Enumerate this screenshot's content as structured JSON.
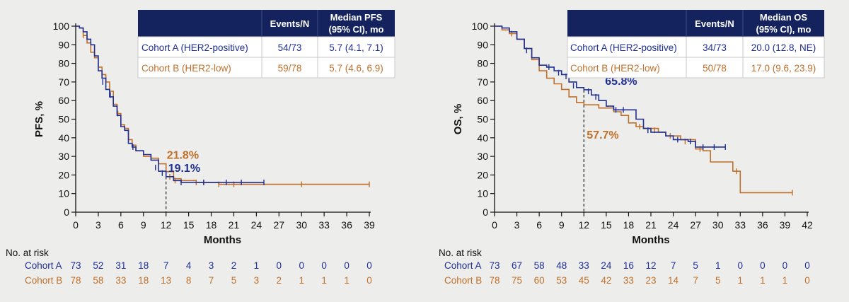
{
  "colors": {
    "cohort_a": "#1f2f93",
    "cohort_b": "#c0702a",
    "header": "#14235e",
    "axis": "#111111"
  },
  "risk_header": "No. at risk",
  "chart_data": [
    {
      "type": "line",
      "chart_kind": "kaplan-meier",
      "xlabel": "Months",
      "ylabel": "PFS, %",
      "xlim": [
        0,
        39
      ],
      "xticks": [
        0,
        3,
        6,
        9,
        12,
        15,
        18,
        21,
        24,
        27,
        30,
        33,
        36,
        39
      ],
      "ylim": [
        0,
        100
      ],
      "yticks": [
        0,
        10,
        20,
        30,
        40,
        50,
        60,
        70,
        80,
        90,
        100
      ],
      "grid": false,
      "marker_x": 12,
      "table": {
        "headers": [
          "",
          "Events/N",
          "Median PFS\n(95% CI), mo"
        ],
        "rows": [
          [
            "Cohort A (HER2-positive)",
            "54/73",
            "5.7 (4.1, 7.1)"
          ],
          [
            "Cohort B (HER2-low)",
            "59/78",
            "5.7 (4.6, 6.9)"
          ]
        ]
      },
      "annotations": [
        {
          "text": "21.8%",
          "series": "B",
          "x": 12,
          "y": 21.8
        },
        {
          "text": "19.1%",
          "series": "A",
          "x": 12,
          "y": 19.1
        }
      ],
      "series": [
        {
          "key": "A",
          "points": [
            [
              0,
              100
            ],
            [
              0.5,
              99
            ],
            [
              1,
              97
            ],
            [
              1.5,
              93
            ],
            [
              2,
              90
            ],
            [
              2.5,
              84
            ],
            [
              3,
              76
            ],
            [
              3.5,
              72
            ],
            [
              4,
              66
            ],
            [
              4.5,
              62
            ],
            [
              5,
              57
            ],
            [
              5.5,
              52
            ],
            [
              6,
              46
            ],
            [
              6.5,
              44
            ],
            [
              7,
              37
            ],
            [
              7.5,
              35
            ],
            [
              8,
              33
            ],
            [
              9,
              31
            ],
            [
              10,
              28
            ],
            [
              11,
              22
            ],
            [
              12,
              19.1
            ],
            [
              13,
              17
            ],
            [
              14,
              16
            ],
            [
              17,
              16
            ],
            [
              20,
              16
            ],
            [
              22,
              16
            ],
            [
              25,
              16
            ]
          ],
          "censors": [
            [
              3.6,
              70
            ],
            [
              4.6,
              63
            ],
            [
              7.6,
              35
            ],
            [
              10.6,
              24
            ],
            [
              11.5,
              21
            ],
            [
              14,
              16
            ],
            [
              17,
              16
            ],
            [
              20,
              16
            ],
            [
              22,
              16
            ],
            [
              25,
              16
            ]
          ]
        },
        {
          "key": "B",
          "points": [
            [
              0,
              100
            ],
            [
              0.5,
              99
            ],
            [
              1,
              95
            ],
            [
              1.5,
              91
            ],
            [
              2,
              86
            ],
            [
              2.5,
              83
            ],
            [
              3,
              78
            ],
            [
              3.5,
              74
            ],
            [
              4,
              70
            ],
            [
              4.5,
              65
            ],
            [
              5,
              58
            ],
            [
              5.5,
              53
            ],
            [
              6,
              47
            ],
            [
              6.5,
              45
            ],
            [
              7,
              39
            ],
            [
              7.5,
              36
            ],
            [
              8,
              33
            ],
            [
              9,
              30
            ],
            [
              10,
              29
            ],
            [
              11,
              26
            ],
            [
              12,
              21.8
            ],
            [
              13,
              18
            ],
            [
              14,
              17
            ],
            [
              16,
              16
            ],
            [
              19,
              15
            ],
            [
              21,
              15
            ],
            [
              24,
              15
            ],
            [
              30,
              15
            ],
            [
              39,
              15
            ]
          ],
          "censors": [
            [
              1,
              95
            ],
            [
              5.6,
              53
            ],
            [
              12.5,
              19
            ],
            [
              13.2,
              17
            ],
            [
              16,
              16
            ],
            [
              17,
              16
            ],
            [
              19,
              15
            ],
            [
              21,
              15
            ],
            [
              30,
              15
            ],
            [
              39,
              15
            ]
          ]
        }
      ],
      "risk_table": {
        "x": [
          0,
          3,
          6,
          9,
          12,
          15,
          18,
          21,
          24,
          27,
          30,
          33,
          36,
          39
        ],
        "rows": [
          {
            "label": "Cohort A",
            "values": [
              "73",
              "52",
              "31",
              "18",
              "7",
              "4",
              "3",
              "2",
              "1",
              "0",
              "0",
              "0",
              "0",
              "0"
            ]
          },
          {
            "label": "Cohort B",
            "values": [
              "78",
              "58",
              "33",
              "18",
              "13",
              "8",
              "7",
              "5",
              "3",
              "2",
              "1",
              "1",
              "1",
              "0"
            ]
          }
        ]
      }
    },
    {
      "type": "line",
      "chart_kind": "kaplan-meier",
      "xlabel": "Months",
      "ylabel": "OS, %",
      "xlim": [
        0,
        42
      ],
      "xticks": [
        0,
        3,
        6,
        9,
        12,
        15,
        18,
        21,
        24,
        27,
        30,
        33,
        36,
        39,
        42
      ],
      "ylim": [
        0,
        100
      ],
      "yticks": [
        0,
        10,
        20,
        30,
        40,
        50,
        60,
        70,
        80,
        90,
        100
      ],
      "grid": false,
      "marker_x": 12,
      "table": {
        "headers": [
          "",
          "Events/N",
          "Median OS\n(95% CI), mo"
        ],
        "rows": [
          [
            "Cohort A (HER2-positive)",
            "34/73",
            "20.0 (12.8, NE)"
          ],
          [
            "Cohort B (HER2-low)",
            "50/78",
            "17.0 (9.6, 23.9)"
          ]
        ]
      },
      "annotations": [
        {
          "text": "65.8%",
          "series": "A",
          "x": 12,
          "y": 65.8
        },
        {
          "text": "57.7%",
          "series": "B",
          "x": 12,
          "y": 57.7
        }
      ],
      "series": [
        {
          "key": "A",
          "points": [
            [
              0,
              100
            ],
            [
              1,
              99
            ],
            [
              2,
              97
            ],
            [
              3,
              93
            ],
            [
              4,
              88
            ],
            [
              5,
              83
            ],
            [
              6,
              79
            ],
            [
              7,
              78
            ],
            [
              8,
              76
            ],
            [
              9,
              74
            ],
            [
              10,
              70
            ],
            [
              11,
              67
            ],
            [
              12,
              65.8
            ],
            [
              13,
              63
            ],
            [
              14,
              60
            ],
            [
              15,
              57
            ],
            [
              16,
              55
            ],
            [
              18,
              55
            ],
            [
              19,
              50
            ],
            [
              20,
              45
            ],
            [
              21,
              43
            ],
            [
              23,
              41
            ],
            [
              24,
              39
            ],
            [
              26,
              38
            ],
            [
              27,
              35
            ],
            [
              29,
              35
            ],
            [
              31,
              35
            ]
          ],
          "censors": [
            [
              4.3,
              87
            ],
            [
              7.3,
              78
            ],
            [
              8.6,
              75
            ],
            [
              9.6,
              73
            ],
            [
              10.6,
              68
            ],
            [
              12.6,
              65
            ],
            [
              13.6,
              62
            ],
            [
              16.3,
              55
            ],
            [
              17.3,
              55
            ],
            [
              20.6,
              44
            ],
            [
              24.6,
              39
            ],
            [
              26.3,
              38
            ],
            [
              28,
              35
            ],
            [
              29.5,
              35
            ],
            [
              31,
              35
            ]
          ]
        },
        {
          "key": "B",
          "points": [
            [
              0,
              100
            ],
            [
              1,
              98
            ],
            [
              2,
              96
            ],
            [
              3,
              93
            ],
            [
              4,
              88
            ],
            [
              5,
              82
            ],
            [
              6,
              76
            ],
            [
              7,
              72
            ],
            [
              8,
              69
            ],
            [
              9,
              66
            ],
            [
              10,
              62
            ],
            [
              11,
              59
            ],
            [
              12,
              57.7
            ],
            [
              14,
              56
            ],
            [
              16,
              54
            ],
            [
              17,
              52
            ],
            [
              18,
              48
            ],
            [
              19,
              46
            ],
            [
              20,
              45
            ],
            [
              22,
              43
            ],
            [
              23,
              41
            ],
            [
              25,
              39
            ],
            [
              27,
              34
            ],
            [
              28,
              33
            ],
            [
              29,
              27
            ],
            [
              32,
              22
            ],
            [
              33,
              10.5
            ],
            [
              40,
              10.5
            ]
          ],
          "censors": [
            [
              2.3,
              96
            ],
            [
              19.5,
              46
            ],
            [
              21.5,
              44
            ],
            [
              23.6,
              41
            ],
            [
              25.6,
              38
            ],
            [
              27.6,
              34
            ],
            [
              32.5,
              22
            ],
            [
              40,
              10.5
            ]
          ]
        }
      ],
      "risk_table": {
        "x": [
          0,
          3,
          6,
          9,
          12,
          15,
          18,
          21,
          24,
          27,
          30,
          33,
          36,
          39,
          42
        ],
        "rows": [
          {
            "label": "Cohort A",
            "values": [
              "73",
              "67",
              "58",
              "48",
              "33",
              "24",
              "16",
              "12",
              "7",
              "5",
              "1",
              "0",
              "0",
              "0",
              "0"
            ]
          },
          {
            "label": "Cohort B",
            "values": [
              "78",
              "75",
              "60",
              "53",
              "45",
              "42",
              "33",
              "23",
              "14",
              "7",
              "5",
              "1",
              "1",
              "1",
              "0"
            ]
          }
        ]
      }
    }
  ]
}
